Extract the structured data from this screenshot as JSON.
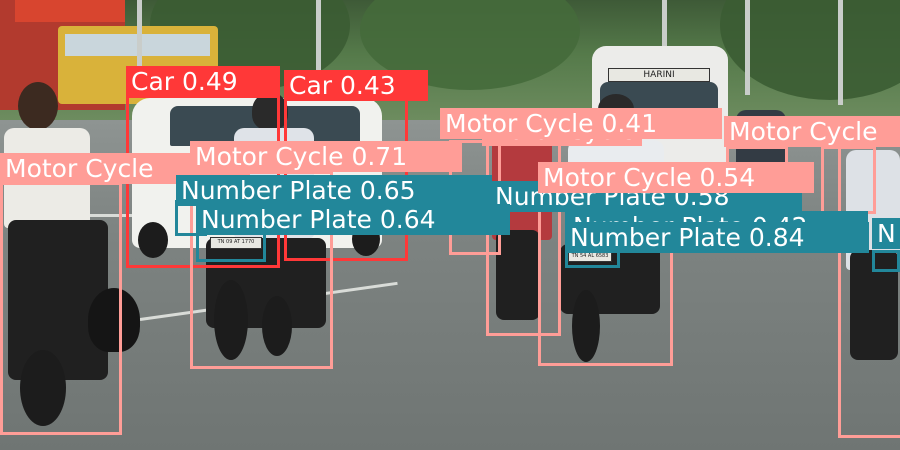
{
  "colors": {
    "car": "#ff3838",
    "motor_cycle": "#ff9d97",
    "number_plate": "#22879a"
  },
  "scene": {
    "bus_sign": "HARINI",
    "plates": [
      "TN 09 AT 1770",
      "TN 54 AL 6583"
    ]
  },
  "detections": [
    {
      "label": "Car 0.49",
      "class": "car"
    },
    {
      "label": "Car 0.43",
      "class": "car"
    },
    {
      "label": "Motor Cycle 0.71",
      "class": "motor_cycle"
    },
    {
      "label": "Motor Cycle",
      "class": "motor_cycle"
    },
    {
      "label": "Motor Cycle 0.41",
      "class": "motor_cycle"
    },
    {
      "label": "Motor Cycle",
      "class": "motor_cycle"
    },
    {
      "label": "Motor Cycle 0.54",
      "class": "motor_cycle"
    },
    {
      "label": "Motor Cycle",
      "class": "motor_cycle"
    },
    {
      "label": "Number Plate 0.65",
      "class": "number_plate"
    },
    {
      "label": "Number Plate 0.64",
      "class": "number_plate"
    },
    {
      "label": "Number Plate 0.58",
      "class": "number_plate"
    },
    {
      "label": "Number Plate 0.84",
      "class": "number_plate"
    },
    {
      "label": "Number Plate 0.42",
      "class": "number_plate"
    },
    {
      "label": "N",
      "class": "number_plate"
    }
  ]
}
